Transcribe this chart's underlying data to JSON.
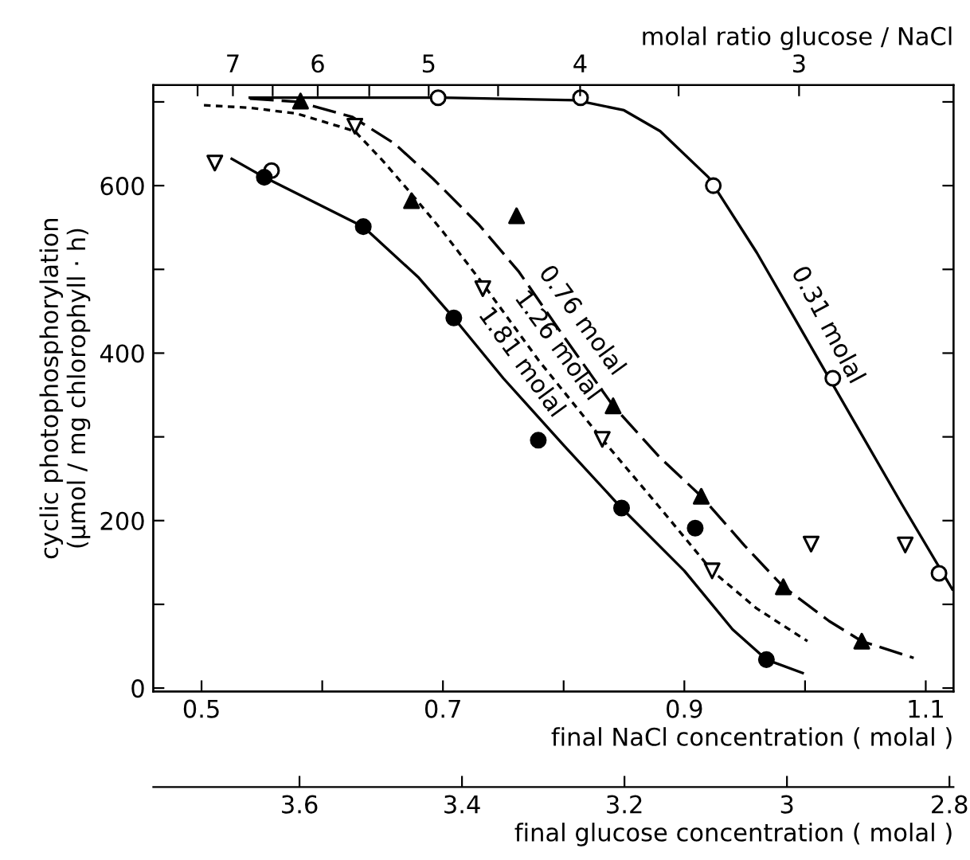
{
  "chart_data": {
    "type": "scatter",
    "ylabel": "cyclic photophosphorylation\n(µmol / mg chlorophyll · h)",
    "xlabel": "final NaCl concentration ( molal )",
    "x2label": "final glucose concentration ( molal )",
    "xlim": [
      0.46,
      1.123
    ],
    "ylim": [
      -4,
      720
    ],
    "x2lim": [
      3.78,
      2.795
    ],
    "xticks": [
      0.5,
      {
        "value": 0.6,
        "label": null
      },
      0.7,
      {
        "value": 0.8,
        "label": null
      },
      0.9,
      {
        "value": 1.0,
        "label": null
      },
      1.1
    ],
    "yticks": [
      0,
      {
        "value": 100,
        "label": null
      },
      200,
      {
        "value": 300,
        "label": null
      },
      400,
      {
        "value": 500,
        "label": null
      },
      600,
      {
        "value": 700,
        "label": null
      }
    ],
    "x2ticks": [
      3.6,
      3.4,
      3.2,
      {
        "value": 3.0,
        "label": "3"
      },
      2.8
    ],
    "grid": false,
    "legend": false,
    "series": [
      {
        "marker": "circle",
        "color": "#ffffff",
        "x": [
          0.558,
          0.696,
          0.814,
          0.924,
          1.023,
          1.111
        ],
        "values": [
          618,
          705,
          705,
          600,
          370,
          137
        ]
      },
      {
        "marker": "triangle",
        "color": "#000000",
        "x": [
          0.582,
          0.674,
          0.761,
          0.841,
          0.914,
          0.982,
          1.047
        ],
        "values": [
          701,
          582,
          564,
          337,
          229,
          121,
          56
        ]
      },
      {
        "marker": "triangle_down",
        "color": "#ffffff",
        "x": [
          0.511,
          0.627,
          0.733,
          0.832,
          0.923,
          1.005,
          1.083
        ],
        "values": [
          627,
          671,
          477,
          297,
          140,
          172,
          171
        ]
      },
      {
        "marker": "circle",
        "color": "#000000",
        "x": [
          0.552,
          0.634,
          0.709,
          0.779,
          0.848,
          0.909,
          0.968
        ],
        "values": [
          610,
          551,
          442,
          296,
          215,
          191,
          34
        ]
      },
      {
        "type": "line",
        "line_style": "solid",
        "color": "#000000",
        "x": [
          0.54,
          0.7,
          0.81,
          0.85,
          0.88,
          0.92,
          0.96,
          1.0,
          1.04,
          1.08,
          1.122
        ],
        "values": [
          705,
          705,
          702,
          690,
          665,
          610,
          520,
          420,
          320,
          220,
          118
        ]
      },
      {
        "type": "line",
        "line_style": "dashed",
        "color": "#000000",
        "x": [
          0.54,
          0.58,
          0.625,
          0.66,
          0.692,
          0.73,
          0.763,
          0.8,
          0.841,
          0.88,
          0.914,
          0.95,
          0.982,
          1.02,
          1.047,
          1.09
        ],
        "values": [
          704,
          700,
          682,
          650,
          608,
          553,
          497,
          420,
          337,
          275,
          229,
          170,
          121,
          80,
          56,
          36
        ]
      },
      {
        "type": "line",
        "line_style": "dotted",
        "color": "#000000",
        "x": [
          0.502,
          0.54,
          0.579,
          0.627,
          0.65,
          0.674,
          0.7,
          0.733,
          0.78,
          0.832,
          0.88,
          0.923,
          0.96,
          1.002
        ],
        "values": [
          696,
          693,
          686,
          665,
          630,
          590,
          545,
          483,
          390,
          297,
          215,
          140,
          95,
          56
        ]
      },
      {
        "type": "line",
        "line_style": "solid",
        "color": "#000000",
        "x": [
          0.525,
          0.552,
          0.634,
          0.68,
          0.709,
          0.75,
          0.8,
          0.848,
          0.9,
          0.94,
          0.968,
          0.998
        ],
        "values": [
          632,
          610,
          551,
          490,
          442,
          370,
          290,
          215,
          140,
          70,
          34,
          18
        ]
      }
    ],
    "annotations": [
      {
        "text": "0.31 molal",
        "x": 1.0,
        "y": 420
      },
      {
        "text": "0.76 molal",
        "x": 0.8,
        "y": 420
      },
      {
        "text": "1.26 molal",
        "x": 0.78,
        "y": 390
      },
      {
        "text": "1.81 molal",
        "x": 0.75,
        "y": 370
      },
      "molal ratio glucose / NaCl",
      "7",
      "6",
      "5",
      "4",
      "3"
    ]
  }
}
